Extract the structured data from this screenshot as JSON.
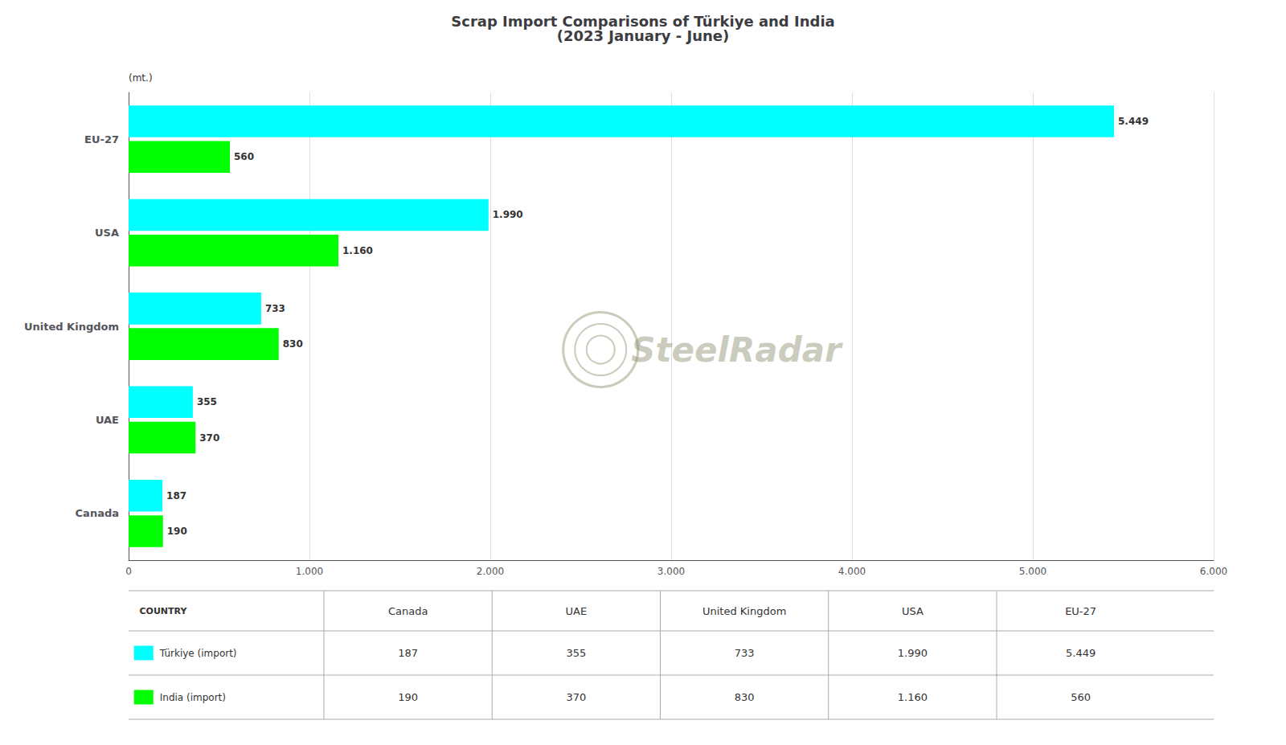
{
  "chart_data": {
    "type": "bar",
    "orientation": "horizontal",
    "title": "Scrap Import Comparisons of Türkiye and India\n(2023 January - June)",
    "categories": [
      "EU-27",
      "USA",
      "United Kingdom",
      "UAE",
      "Canada"
    ],
    "series": [
      {
        "name": "Türkiye (import)",
        "color": "#00FFFF",
        "values": [
          5449,
          1990,
          733,
          355,
          187
        ],
        "value_labels": [
          "5.449",
          "1.990",
          "733",
          "355",
          "187"
        ]
      },
      {
        "name": "India (import)",
        "color": "#00FF00",
        "values": [
          560,
          1160,
          830,
          370,
          190
        ],
        "value_labels": [
          "560",
          "1.160",
          "830",
          "370",
          "190"
        ]
      }
    ],
    "xlim": [
      0,
      6000
    ],
    "xticks": [
      0,
      {
        "value": 1000,
        "label": "1.000"
      },
      {
        "value": 2000,
        "label": "2.000"
      },
      {
        "value": 3000,
        "label": "3.000"
      },
      {
        "value": 4000,
        "label": "4.000"
      },
      {
        "value": 5000,
        "label": "5.000"
      },
      {
        "value": 6000,
        "label": "6.000"
      }
    ],
    "grid": true,
    "data_labels": true,
    "annotations": [
      "(mt.)",
      "SteelRadar"
    ],
    "table": {
      "header": [
        "COUNTRY",
        "Canada",
        "UAE",
        "United Kingdom",
        "USA",
        "EU-27"
      ],
      "rows": [
        [
          "187",
          "355",
          "733",
          "1.990",
          "5.449"
        ],
        [
          "190",
          "370",
          "830",
          "1.160",
          "560"
        ]
      ]
    }
  }
}
